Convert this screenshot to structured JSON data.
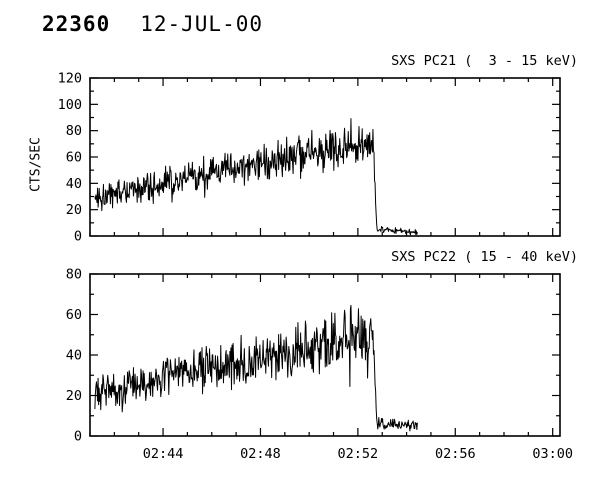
{
  "header": {
    "obs_id": "22360",
    "date": "12-JUL-00"
  },
  "chart_data": [
    {
      "type": "line",
      "title": "SXS PC21 (  3 - 15 keV)",
      "ylabel": "CTS/SEC",
      "x_units": "minutes_after_midnight",
      "xlim": [
        161.0,
        180.3
      ],
      "ylim": [
        0,
        120
      ],
      "yticks": [
        0,
        20,
        40,
        60,
        80,
        100,
        120
      ],
      "y_minor_step": 10,
      "xticks": {
        "values": [
          164,
          168,
          172,
          176,
          180
        ],
        "labels": [
          "02:44",
          "02:48",
          "02:52",
          "02:56",
          "03:00"
        ]
      },
      "x_minor_step": 1,
      "show_x_labels": false,
      "grid": false,
      "seed": 1337,
      "sample_step": 0.022,
      "profile": [
        {
          "t": 161.2,
          "mean": 30,
          "noise": 12
        },
        {
          "t": 170.8,
          "mean": 66,
          "noise": 18
        },
        {
          "t": 172.4,
          "mean": 72,
          "noise": 19
        },
        {
          "t": 172.62,
          "mean": 74,
          "noise": 14
        },
        {
          "t": 172.78,
          "mean": 5,
          "noise": 3
        },
        {
          "t": 174.45,
          "mean": 3,
          "noise": 2.5
        }
      ]
    },
    {
      "type": "line",
      "title": "SXS PC22 ( 15 - 40 keV)",
      "ylabel": "",
      "x_units": "minutes_after_midnight",
      "xlim": [
        161.0,
        180.3
      ],
      "ylim": [
        0,
        80
      ],
      "yticks": [
        0,
        20,
        40,
        60,
        80
      ],
      "y_minor_step": 10,
      "xticks": {
        "values": [
          164,
          168,
          172,
          176,
          180
        ],
        "labels": [
          "02:44",
          "02:48",
          "02:52",
          "02:56",
          "03:00"
        ]
      },
      "x_minor_step": 1,
      "show_x_labels": true,
      "grid": false,
      "seed": 777,
      "sample_step": 0.022,
      "profile": [
        {
          "t": 161.2,
          "mean": 21,
          "noise": 10
        },
        {
          "t": 170.8,
          "mean": 46,
          "noise": 16
        },
        {
          "t": 172.4,
          "mean": 50,
          "noise": 17
        },
        {
          "t": 172.62,
          "mean": 52,
          "noise": 12
        },
        {
          "t": 172.78,
          "mean": 6,
          "noise": 3.5
        },
        {
          "t": 174.45,
          "mean": 5,
          "noise": 3
        }
      ]
    }
  ]
}
